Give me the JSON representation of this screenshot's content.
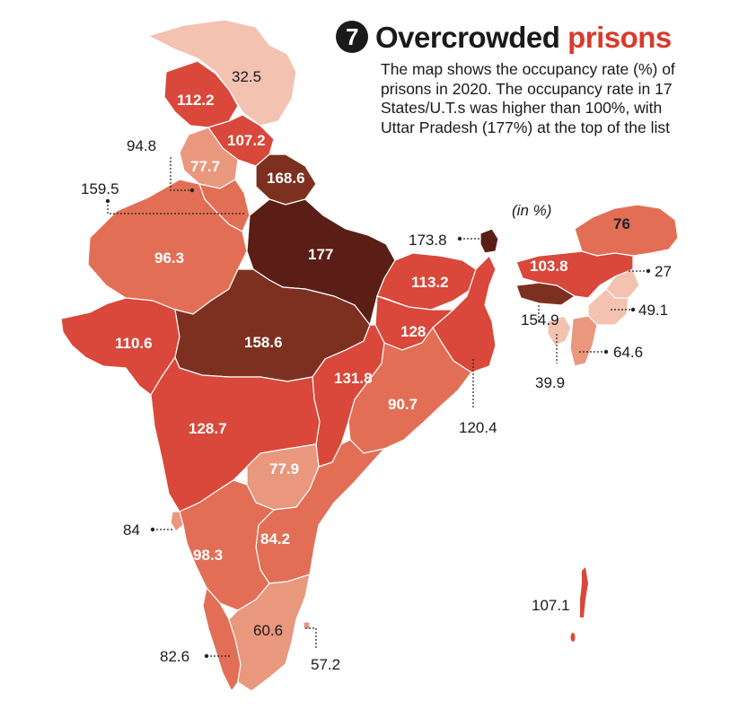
{
  "header": {
    "number": "7",
    "title_part1": "Overcrowded",
    "title_part2": "prisons",
    "description": "The map shows the occupancy rate (%) of prisons in 2020. The occupancy rate in 17 States/U.T.s was higher than 100%, with Uttar Pradesh (177%) at the top of the list"
  },
  "unit_note": "(in %)",
  "colors": {
    "accent": "#d93a2b",
    "very_high": "#5a1e17",
    "high": "#7e3020",
    "above_100": "#d9483a",
    "mid": "#e26f55",
    "low": "#e9977d",
    "very_low": "#f3c2b0"
  },
  "map_values": {
    "ladakh": "32.5",
    "jammu_kashmir": "112.2",
    "himachal_pradesh": "107.2",
    "punjab": "77.7",
    "chandigarh": "94.8",
    "delhi": "159.5",
    "uttarakhand": "168.6",
    "rajasthan": "96.3",
    "uttar_pradesh": "177",
    "bihar": "113.2",
    "sikkim": "173.8",
    "arunachal_pradesh": "76",
    "assam": "103.8",
    "nagaland": "27",
    "meghalaya": "154.9",
    "manipur": "49.1",
    "mizoram": "64.6",
    "tripura": "39.9",
    "west_bengal": "120.4",
    "jharkhand": "128",
    "gujarat": "110.6",
    "madhya_pradesh": "158.6",
    "chhattisgarh": "131.8",
    "odisha": "90.7",
    "maharashtra": "128.7",
    "telangana": "77.9",
    "goa": "84",
    "karnataka": "98.3",
    "andhra_pradesh": "84.2",
    "tamil_nadu": "60.6",
    "puducherry": "57.2",
    "kerala": "82.6",
    "andaman_nicobar": "107.1"
  }
}
